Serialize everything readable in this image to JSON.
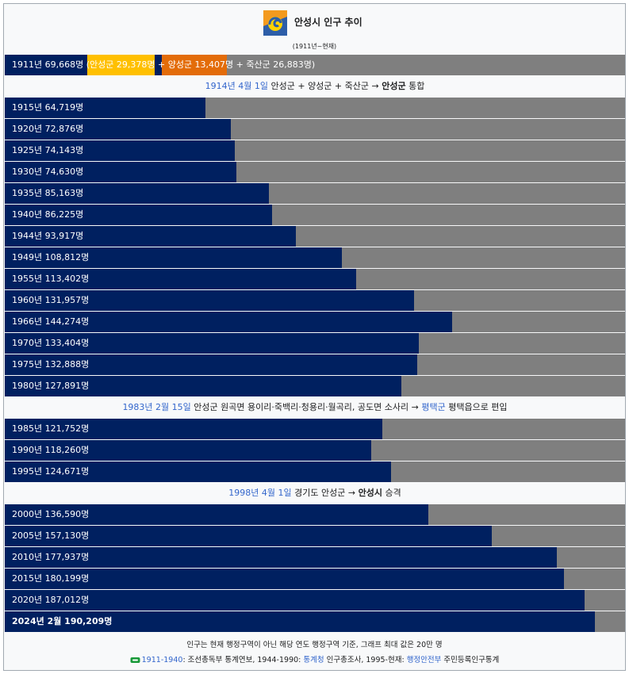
{
  "header": {
    "title": "안성시 인구 추이",
    "subtitle": "(1911년~현재)"
  },
  "colors": {
    "bar": "#002060",
    "track": "#7f7f7f",
    "segment_anseong": "#ffc000",
    "segment_yangseong": "#e36c09",
    "link": "#3366cc"
  },
  "first_row": {
    "prefix": "1911년 69,668명 (",
    "segments": [
      {
        "label": "안성군 29,378명",
        "value": 29378,
        "color": "#ffc000"
      },
      {
        "sep": " + "
      },
      {
        "label": "양성군 13,407명",
        "value": 13407,
        "color": "#e36c09"
      },
      {
        "sep": " + "
      },
      {
        "label": "죽산군 26,883명",
        "value": 26883,
        "color": "#7f7f7f"
      }
    ],
    "suffix": ")"
  },
  "events": [
    {
      "after_year": "1911",
      "parts": [
        {
          "text": "1914년 4월 1일",
          "link": true
        },
        {
          "text": " 안성군 + 양성군 + 죽산군 → "
        },
        {
          "text": "안성군",
          "bold": true
        },
        {
          "text": " 통합"
        }
      ]
    },
    {
      "after_year": "1980",
      "parts": [
        {
          "text": "1983년 2월 15일",
          "link": true
        },
        {
          "text": " 안성군 원곡면 용이리·죽백리·청용리·월곡리, 공도면 소사리 → "
        },
        {
          "text": "평택군",
          "link": true
        },
        {
          "text": " 평택읍으로 편입"
        }
      ]
    },
    {
      "after_year": "1995",
      "parts": [
        {
          "text": "1998년 4월 1일",
          "link": true
        },
        {
          "text": " 경기도 안성군 → "
        },
        {
          "text": "안성시",
          "bold": true
        },
        {
          "text": " 승격"
        }
      ]
    }
  ],
  "footer": {
    "note": "인구는 현재 행정구역이 아닌 해당 연도 행정구역 기준, 그래프 최대 값은 20만 명",
    "sources": [
      {
        "text": "1911-1940",
        "link": true
      },
      {
        "text": ": 조선총독부 통계연보, 1944-1990: "
      },
      {
        "text": "통계청",
        "link": true
      },
      {
        "text": " 인구총조사, 1995-현재: "
      },
      {
        "text": "행정안전부",
        "link": true
      },
      {
        "text": " 주민등록인구통계"
      }
    ]
  },
  "chart_data": {
    "type": "bar",
    "orientation": "horizontal",
    "xlim": [
      0,
      200000
    ],
    "title": "안성시 인구 추이",
    "subtitle": "(1911년~현재)",
    "categories": [
      "1911",
      "1915",
      "1920",
      "1925",
      "1930",
      "1935",
      "1940",
      "1944",
      "1949",
      "1955",
      "1960",
      "1966",
      "1970",
      "1975",
      "1980",
      "1985",
      "1990",
      "1995",
      "2000",
      "2005",
      "2010",
      "2015",
      "2020",
      "2024년 2월"
    ],
    "values": [
      69668,
      64719,
      72876,
      74143,
      74630,
      85163,
      86225,
      93917,
      108812,
      113402,
      131957,
      144274,
      133404,
      132888,
      127891,
      121752,
      118260,
      124671,
      136590,
      157130,
      177937,
      180199,
      187012,
      190209
    ],
    "labels": [
      "1911년 69,668명",
      "1915년 64,719명",
      "1920년 72,876명",
      "1925년 74,143명",
      "1930년 74,630명",
      "1935년 85,163명",
      "1940년 86,225명",
      "1944년 93,917명",
      "1949년 108,812명",
      "1955년 113,402명",
      "1960년 131,957명",
      "1966년 144,274명",
      "1970년 133,404명",
      "1975년 132,888명",
      "1980년 127,891명",
      "1985년 121,752명",
      "1990년 118,260명",
      "1995년 124,671명",
      "2000년 136,590명",
      "2005년 157,130명",
      "2010년 177,937명",
      "2015년 180,199명",
      "2020년 187,012명",
      "2024년 2월 190,209명"
    ],
    "bold_last": true
  }
}
